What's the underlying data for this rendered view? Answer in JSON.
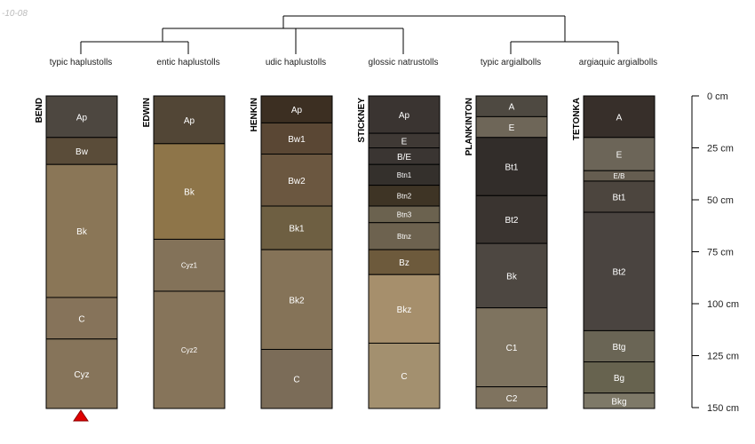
{
  "corner_text": "-10-08",
  "depth_axis": {
    "ticks": [
      {
        "depth": 0,
        "label": "0 cm"
      },
      {
        "depth": 25,
        "label": "25 cm"
      },
      {
        "depth": 50,
        "label": "50 cm"
      },
      {
        "depth": 75,
        "label": "75 cm"
      },
      {
        "depth": 100,
        "label": "100 cm"
      },
      {
        "depth": 125,
        "label": "125 cm"
      },
      {
        "depth": 150,
        "label": "150 cm"
      }
    ],
    "max_depth": 150
  },
  "profiles": [
    {
      "name": "BEND",
      "taxonomy": "typic haplustolls",
      "marker": "red-triangle",
      "horizons": [
        {
          "name": "Ap",
          "top": 0,
          "bottom": 20,
          "color": "#4d4740"
        },
        {
          "name": "Bw",
          "top": 20,
          "bottom": 33,
          "color": "#5a4c39"
        },
        {
          "name": "Bk",
          "top": 33,
          "bottom": 97,
          "color": "#8a7657"
        },
        {
          "name": "C",
          "top": 97,
          "bottom": 117,
          "color": "#86735a"
        },
        {
          "name": "Cyz",
          "top": 117,
          "bottom": 152,
          "color": "#86745a"
        }
      ]
    },
    {
      "name": "EDWIN",
      "taxonomy": "entic haplustolls",
      "horizons": [
        {
          "name": "Ap",
          "top": 0,
          "bottom": 23,
          "color": "#524636"
        },
        {
          "name": "Bk",
          "top": 23,
          "bottom": 69,
          "color": "#8e7549"
        },
        {
          "name": "Cyz1",
          "top": 69,
          "bottom": 94,
          "color": "#837259"
        },
        {
          "name": "Cyz2",
          "top": 94,
          "bottom": 152,
          "color": "#86745a"
        }
      ]
    },
    {
      "name": "HENKIN",
      "taxonomy": "udic haplustolls",
      "horizons": [
        {
          "name": "Ap",
          "top": 0,
          "bottom": 13,
          "color": "#3c2f22"
        },
        {
          "name": "Bw1",
          "top": 13,
          "bottom": 28,
          "color": "#5a4734"
        },
        {
          "name": "Bw2",
          "top": 28,
          "bottom": 53,
          "color": "#6b5740"
        },
        {
          "name": "Bk1",
          "top": 53,
          "bottom": 74,
          "color": "#6e5f42"
        },
        {
          "name": "Bk2",
          "top": 74,
          "bottom": 122,
          "color": "#857358"
        },
        {
          "name": "C",
          "top": 122,
          "bottom": 152,
          "color": "#7b6c58"
        }
      ]
    },
    {
      "name": "STICKNEY",
      "taxonomy": "glossic natrustolls",
      "horizons": [
        {
          "name": "Ap",
          "top": 0,
          "bottom": 18,
          "color": "#3a3431"
        },
        {
          "name": "E",
          "top": 18,
          "bottom": 25,
          "color": "#3f3935"
        },
        {
          "name": "B/E",
          "top": 25,
          "bottom": 33,
          "color": "#3a3532"
        },
        {
          "name": "Btn1",
          "top": 33,
          "bottom": 43,
          "color": "#34302c"
        },
        {
          "name": "Btn2",
          "top": 43,
          "bottom": 53,
          "color": "#3e3425"
        },
        {
          "name": "Btn3",
          "top": 53,
          "bottom": 61,
          "color": "#6b624f"
        },
        {
          "name": "Btnz",
          "top": 61,
          "bottom": 74,
          "color": "#6d624f"
        },
        {
          "name": "Bz",
          "top": 74,
          "bottom": 86,
          "color": "#6d5a3c"
        },
        {
          "name": "Bkz",
          "top": 86,
          "bottom": 119,
          "color": "#a68f6c"
        },
        {
          "name": "C",
          "top": 119,
          "bottom": 152,
          "color": "#a3906f"
        }
      ]
    },
    {
      "name": "PLANKINTON",
      "taxonomy": "typic argialbolls",
      "horizons": [
        {
          "name": "A",
          "top": 0,
          "bottom": 10,
          "color": "#4e4941"
        },
        {
          "name": "E",
          "top": 10,
          "bottom": 20,
          "color": "#6e6658"
        },
        {
          "name": "Bt1",
          "top": 20,
          "bottom": 48,
          "color": "#322d2a"
        },
        {
          "name": "Bt2",
          "top": 48,
          "bottom": 71,
          "color": "#3a3430"
        },
        {
          "name": "Bk",
          "top": 71,
          "bottom": 102,
          "color": "#4d4741"
        },
        {
          "name": "C1",
          "top": 102,
          "bottom": 140,
          "color": "#7e735f"
        },
        {
          "name": "C2",
          "top": 140,
          "bottom": 152,
          "color": "#7f735f"
        }
      ]
    },
    {
      "name": "TETONKA",
      "taxonomy": "argiaquic argialbolls",
      "horizons": [
        {
          "name": "A",
          "top": 0,
          "bottom": 20,
          "color": "#372f2a"
        },
        {
          "name": "E",
          "top": 20,
          "bottom": 36,
          "color": "#6c6558"
        },
        {
          "name": "E/B",
          "top": 36,
          "bottom": 41,
          "color": "#655d50"
        },
        {
          "name": "Bt1",
          "top": 41,
          "bottom": 56,
          "color": "#4c453e"
        },
        {
          "name": "Bt2",
          "top": 56,
          "bottom": 113,
          "color": "#4a4440"
        },
        {
          "name": "Btg",
          "top": 113,
          "bottom": 128,
          "color": "#6a6555"
        },
        {
          "name": "Bg",
          "top": 128,
          "bottom": 143,
          "color": "#67634f"
        },
        {
          "name": "Bkg",
          "top": 143,
          "bottom": 152,
          "color": "#7e7968"
        }
      ]
    }
  ]
}
